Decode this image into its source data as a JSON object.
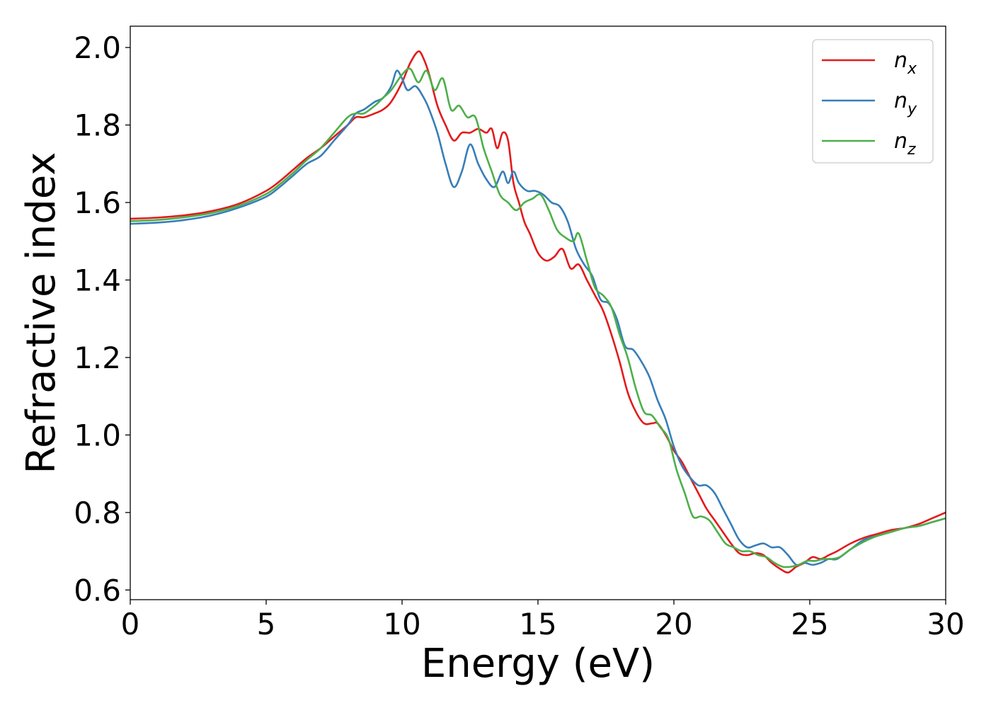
{
  "chart_data": {
    "type": "line",
    "title": "",
    "xlabel": "Energy (eV)",
    "ylabel": "Refractive index",
    "xlim": [
      0,
      30
    ],
    "ylim": [
      0.575,
      2.055
    ],
    "grid": false,
    "legend_position": "top-right",
    "x_ticks": [
      0,
      5,
      10,
      15,
      20,
      25,
      30
    ],
    "x_tick_labels": [
      "0",
      "5",
      "10",
      "15",
      "20",
      "25",
      "30"
    ],
    "y_ticks": [
      0.6,
      0.8,
      1.0,
      1.2,
      1.4,
      1.6,
      1.8,
      2.0
    ],
    "y_tick_labels": [
      "0.6",
      "0.8",
      "1.0",
      "1.2",
      "1.4",
      "1.6",
      "1.8",
      "2.0"
    ],
    "series": [
      {
        "name": "n_x",
        "label_main": "n",
        "label_sub": "x",
        "color": "#e41a1c",
        "x": [
          0,
          1,
          2,
          3,
          4,
          5,
          5.5,
          6,
          6.5,
          7,
          7.5,
          8,
          8.3,
          8.6,
          9,
          9.3,
          9.6,
          10,
          10.3,
          10.6,
          10.8,
          11,
          11.3,
          11.6,
          11.9,
          12.2,
          12.5,
          12.8,
          13.1,
          13.3,
          13.5,
          13.7,
          13.9,
          14.1,
          14.3,
          14.5,
          14.7,
          15,
          15.3,
          15.6,
          15.9,
          16.2,
          16.5,
          16.8,
          17.1,
          17.4,
          17.7,
          18,
          18.3,
          18.6,
          18.9,
          19.2,
          19.4,
          19.7,
          20,
          20.3,
          20.6,
          20.9,
          21.2,
          21.5,
          21.8,
          22.1,
          22.4,
          22.7,
          23,
          23.3,
          23.6,
          23.9,
          24.2,
          24.5,
          24.8,
          25.1,
          25.4,
          25.7,
          26,
          26.5,
          27,
          27.5,
          28,
          28.5,
          29,
          29.5,
          30
        ],
        "y": [
          1.558,
          1.561,
          1.567,
          1.578,
          1.597,
          1.63,
          1.655,
          1.685,
          1.715,
          1.74,
          1.77,
          1.8,
          1.82,
          1.82,
          1.83,
          1.84,
          1.86,
          1.91,
          1.96,
          1.99,
          1.97,
          1.93,
          1.85,
          1.8,
          1.76,
          1.78,
          1.78,
          1.79,
          1.78,
          1.79,
          1.74,
          1.78,
          1.76,
          1.65,
          1.6,
          1.55,
          1.52,
          1.47,
          1.45,
          1.46,
          1.48,
          1.43,
          1.44,
          1.4,
          1.36,
          1.32,
          1.26,
          1.19,
          1.11,
          1.06,
          1.03,
          1.03,
          1.03,
          1.0,
          0.96,
          0.93,
          0.89,
          0.85,
          0.81,
          0.78,
          0.75,
          0.72,
          0.695,
          0.69,
          0.695,
          0.69,
          0.67,
          0.655,
          0.645,
          0.66,
          0.67,
          0.685,
          0.68,
          0.69,
          0.7,
          0.72,
          0.735,
          0.745,
          0.755,
          0.76,
          0.77,
          0.785,
          0.8
        ]
      },
      {
        "name": "n_y",
        "label_main": "n",
        "label_sub": "y",
        "color": "#377eb8",
        "x": [
          0,
          1,
          2,
          3,
          4,
          5,
          5.5,
          6,
          6.5,
          7,
          7.5,
          8,
          8.3,
          8.6,
          9,
          9.3,
          9.6,
          9.8,
          10,
          10.2,
          10.5,
          10.8,
          11,
          11.3,
          11.6,
          11.9,
          12.2,
          12.5,
          12.8,
          13.1,
          13.4,
          13.7,
          13.9,
          14.1,
          14.3,
          14.6,
          14.9,
          15.2,
          15.5,
          15.8,
          16.1,
          16.4,
          16.7,
          17,
          17.3,
          17.6,
          17.9,
          18.2,
          18.5,
          18.8,
          19.1,
          19.4,
          19.7,
          20,
          20.3,
          20.6,
          20.9,
          21.2,
          21.5,
          21.8,
          22.1,
          22.4,
          22.7,
          23,
          23.3,
          23.6,
          23.9,
          24.2,
          24.5,
          24.8,
          25.1,
          25.4,
          25.7,
          26,
          26.5,
          27,
          27.5,
          28,
          28.5,
          29,
          29.5,
          30
        ],
        "y": [
          1.545,
          1.548,
          1.555,
          1.567,
          1.587,
          1.615,
          1.64,
          1.67,
          1.7,
          1.72,
          1.76,
          1.8,
          1.83,
          1.84,
          1.86,
          1.87,
          1.9,
          1.94,
          1.92,
          1.89,
          1.9,
          1.87,
          1.84,
          1.78,
          1.7,
          1.64,
          1.68,
          1.75,
          1.7,
          1.66,
          1.64,
          1.68,
          1.65,
          1.68,
          1.65,
          1.63,
          1.63,
          1.62,
          1.6,
          1.59,
          1.55,
          1.48,
          1.44,
          1.41,
          1.35,
          1.34,
          1.3,
          1.23,
          1.22,
          1.19,
          1.15,
          1.09,
          1.04,
          0.97,
          0.92,
          0.89,
          0.87,
          0.87,
          0.85,
          0.81,
          0.77,
          0.73,
          0.71,
          0.715,
          0.72,
          0.71,
          0.71,
          0.69,
          0.665,
          0.67,
          0.665,
          0.67,
          0.68,
          0.68,
          0.705,
          0.73,
          0.74,
          0.75,
          0.76,
          0.765,
          0.775,
          0.785
        ]
      },
      {
        "name": "n_z",
        "label_main": "n",
        "label_sub": "z",
        "color": "#4daf4a",
        "x": [
          0,
          1,
          2,
          3,
          4,
          5,
          5.5,
          6,
          6.5,
          7,
          7.5,
          8,
          8.3,
          8.6,
          9,
          9.3,
          9.6,
          10,
          10.3,
          10.6,
          10.9,
          11.2,
          11.5,
          11.8,
          12.1,
          12.4,
          12.7,
          13,
          13.3,
          13.6,
          13.9,
          14.2,
          14.5,
          14.8,
          15.1,
          15.4,
          15.7,
          16,
          16.3,
          16.5,
          16.8,
          17.1,
          17.4,
          17.7,
          18,
          18.3,
          18.6,
          18.9,
          19.2,
          19.5,
          19.8,
          20.1,
          20.4,
          20.7,
          21,
          21.3,
          21.6,
          21.9,
          22.2,
          22.5,
          22.8,
          23.1,
          23.4,
          23.7,
          24,
          24.3,
          24.6,
          24.9,
          25.2,
          25.5,
          25.8,
          26.1,
          26.5,
          27,
          27.5,
          28,
          28.5,
          29,
          29.5,
          30
        ],
        "y": [
          1.552,
          1.555,
          1.562,
          1.573,
          1.592,
          1.622,
          1.647,
          1.677,
          1.71,
          1.74,
          1.78,
          1.82,
          1.83,
          1.83,
          1.85,
          1.87,
          1.89,
          1.93,
          1.945,
          1.91,
          1.94,
          1.89,
          1.92,
          1.84,
          1.85,
          1.82,
          1.82,
          1.74,
          1.68,
          1.62,
          1.6,
          1.58,
          1.6,
          1.61,
          1.62,
          1.58,
          1.53,
          1.51,
          1.5,
          1.52,
          1.45,
          1.38,
          1.36,
          1.33,
          1.26,
          1.2,
          1.12,
          1.06,
          1.05,
          1.02,
          0.99,
          0.91,
          0.85,
          0.79,
          0.79,
          0.78,
          0.75,
          0.72,
          0.71,
          0.7,
          0.7,
          0.69,
          0.685,
          0.67,
          0.66,
          0.66,
          0.665,
          0.675,
          0.675,
          0.68,
          0.68,
          0.685,
          0.705,
          0.725,
          0.74,
          0.75,
          0.76,
          0.765,
          0.775,
          0.785
        ]
      }
    ]
  }
}
